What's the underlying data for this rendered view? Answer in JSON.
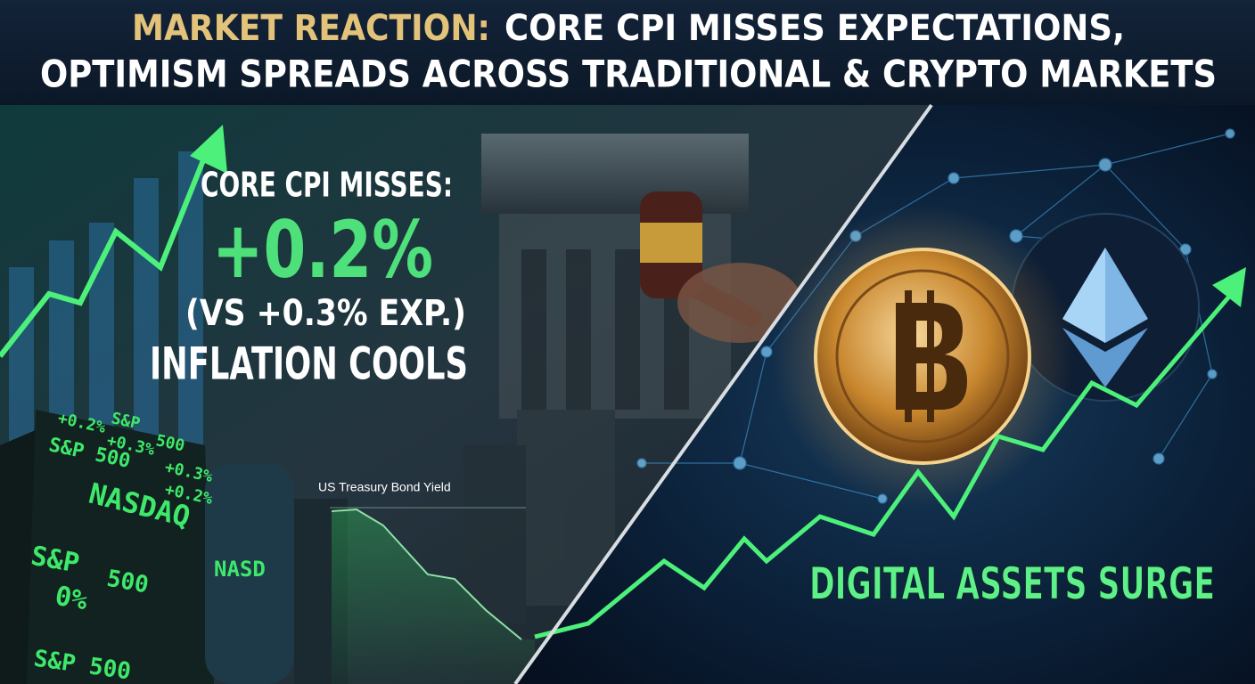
{
  "header": {
    "title_highlight": "MARKET REACTION:",
    "title_rest": "CORE CPI MISSES EXPECTATIONS,",
    "title_line2": "OPTIMISM SPREADS ACROSS TRADITIONAL & CRYPTO MARKETS"
  },
  "left_panel": {
    "headline": "CORE CPI MISSES:",
    "actual": "+0.2%",
    "expected": "(VS +0.3% EXP.)",
    "conclusion": "INFLATION COOLS",
    "chart_label": "US Treasury Bond Yield",
    "tickers": [
      "+0.2%",
      "S&P",
      "+0.3%",
      "500",
      "S&P 500",
      "+0.3%",
      "+0.2%",
      "NASDAQ",
      "S&P",
      "500",
      "0%",
      "S&P 500",
      "NASD"
    ]
  },
  "right_panel": {
    "caption": "DIGITAL ASSETS SURGE"
  }
}
